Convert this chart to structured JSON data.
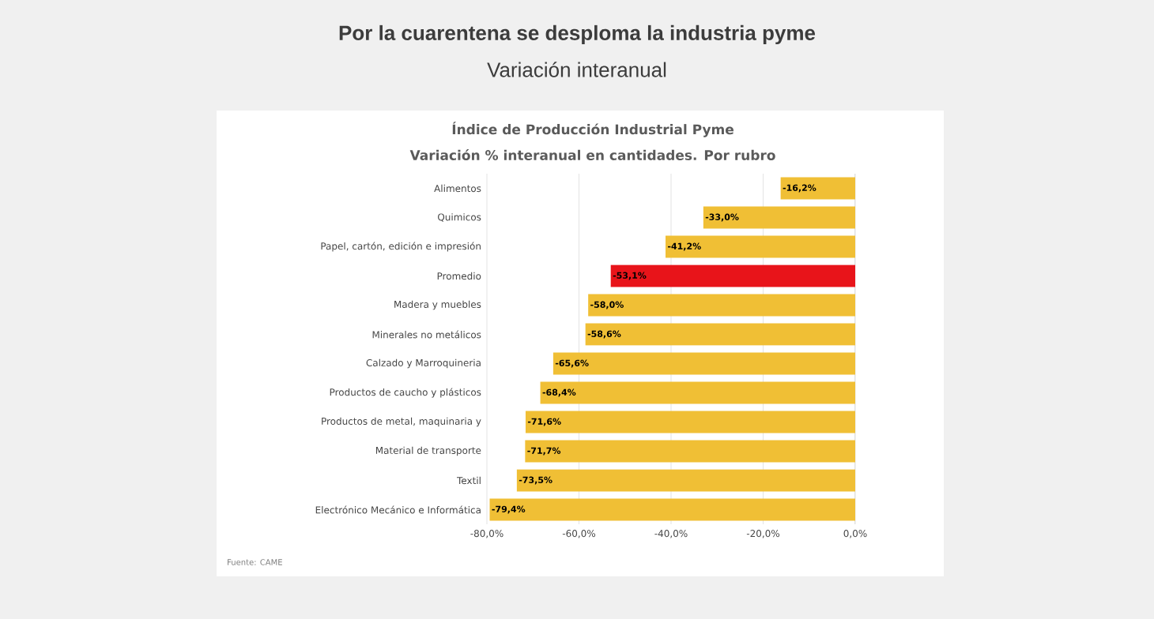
{
  "chart_data": {
    "type": "bar",
    "orientation": "horizontal",
    "title": "Por la cuarentena se desploma la industria pyme",
    "subtitle": "Variación interanual",
    "annotations": [
      "Índice de Producción Industrial Pyme",
      "Variación % interanual en cantidades. Por rubro",
      "Fuente: CAME"
    ],
    "categories": [
      "Alimentos",
      "Quimicos",
      "Papel, cartón, edición e impresión",
      "Promedio",
      "Madera y muebles",
      "Minerales no metálicos",
      "Calzado y Marroquineria",
      "Productos de caucho y plásticos",
      "Productos de metal, maquinaria y",
      "Material de transporte",
      "Textil",
      "Electrónico Mecánico e Informática"
    ],
    "values": [
      -16.2,
      -33.0,
      -41.2,
      -53.1,
      -58.0,
      -58.6,
      -65.6,
      -68.4,
      -71.6,
      -71.7,
      -73.5,
      -79.4
    ],
    "value_labels": [
      "-16,2%",
      "-33,0%",
      "-41,2%",
      "-53,1%",
      "-58,0%",
      "-58,6%",
      "-65,6%",
      "-68,4%",
      "-71,6%",
      "-71,7%",
      "-73,5%",
      "-79,4%"
    ],
    "colors": [
      "#f0bf35",
      "#f0bf35",
      "#f0bf35",
      "#e8141a",
      "#f0bf35",
      "#f0bf35",
      "#f0bf35",
      "#f0bf35",
      "#f0bf35",
      "#f0bf35",
      "#f0bf35",
      "#f0bf35"
    ],
    "xlim": [
      -80,
      0
    ],
    "xticks": [
      {
        "value": -80,
        "label": "-80,0%"
      },
      {
        "value": -60,
        "label": "-60,0%"
      },
      {
        "value": -40,
        "label": "-40,0%"
      },
      {
        "value": -20,
        "label": "-20,0%"
      },
      {
        "value": 0,
        "label": "0,0%"
      }
    ],
    "grid": "x"
  }
}
